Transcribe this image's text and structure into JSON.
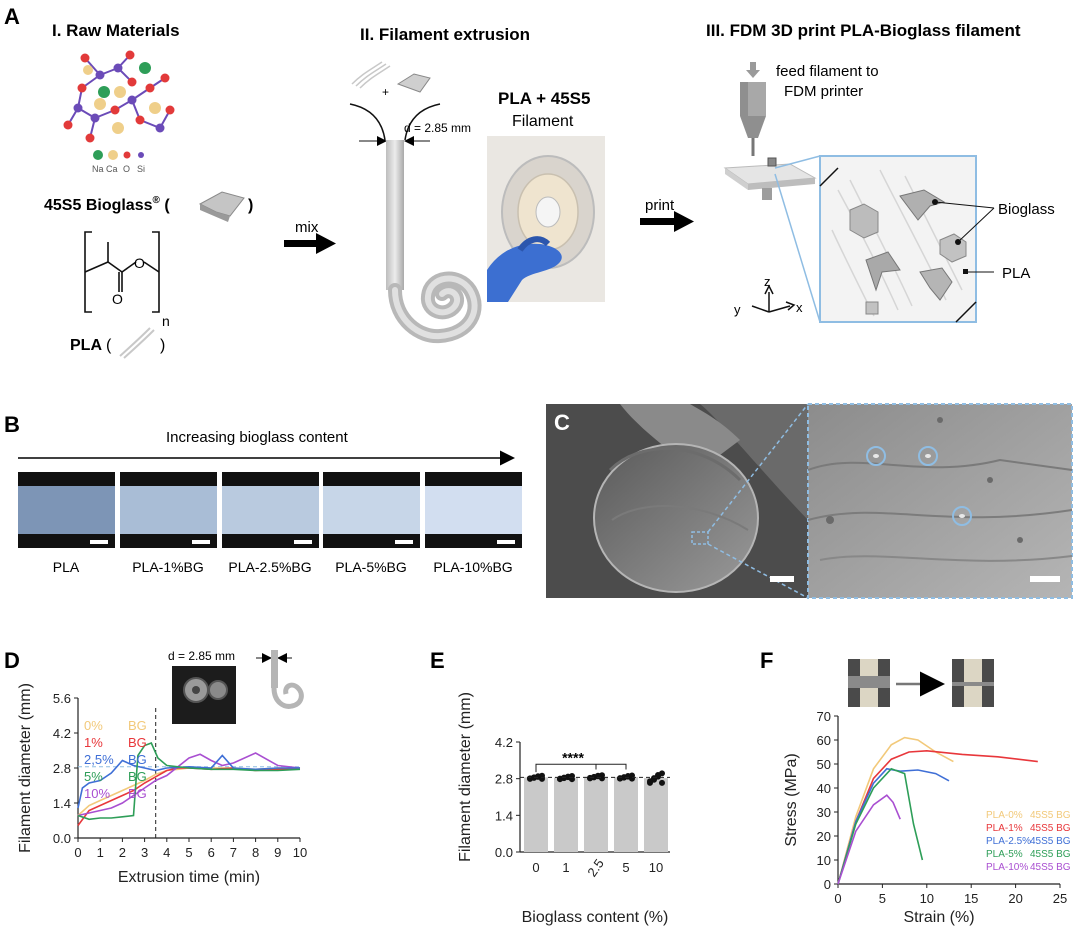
{
  "panel_a": {
    "letter": "A",
    "section1_title": "I. Raw Materials",
    "section2_title": "II. Filament extrusion",
    "section3_title": "III. FDM 3D print PLA-Bioglass filament",
    "atom_legend": [
      "Na",
      "Ca",
      "O",
      "Si"
    ],
    "bioglass_label": "45S5 Bioglass",
    "bioglass_reg": "®",
    "pla_label": "PLA",
    "subscript_n": "n",
    "mix_label": "mix",
    "plus_label": "+",
    "diameter_label": "d = 2.85 mm",
    "filament_title": "PLA + 45S5",
    "filament_sub": "Filament",
    "print_label": "print",
    "feed_label_1": "feed filament to",
    "feed_label_2": "FDM printer",
    "bioglass_callout": "Bioglass",
    "pla_callout": "PLA",
    "axes": [
      "z",
      "y",
      "x"
    ]
  },
  "panel_b": {
    "letter": "B",
    "arrow_label": "Increasing bioglass content",
    "samples": [
      "PLA",
      "PLA-1%BG",
      "PLA-2.5%BG",
      "PLA-5%BG",
      "PLA-10%BG"
    ]
  },
  "panel_c": {
    "letter": "C"
  },
  "panel_d": {
    "letter": "D",
    "inset_label": "d = 2.85 mm"
  },
  "panel_e": {
    "letter": "E",
    "sig_label": "****"
  },
  "panel_f": {
    "letter": "F"
  },
  "colors": {
    "bg0": "#f2c97a",
    "bg1": "#e8373b",
    "bg25": "#3f6fd6",
    "bg5": "#2e9e58",
    "bg10": "#a94fd1",
    "bar": "#c9c9c9",
    "sem_blue": "#8fbde3"
  },
  "chart_data": [
    {
      "type": "line",
      "panel": "D",
      "title": "",
      "xlabel": "Extrusion time (min)",
      "ylabel": "Filament diameter (mm)",
      "xlim": [
        0,
        10
      ],
      "ylim": [
        0,
        5.6
      ],
      "xticks": [
        "0",
        "1",
        "2",
        "3",
        "4",
        "5",
        "6",
        "7",
        "8",
        "9",
        "10"
      ],
      "yticks": [
        "0.0",
        "1.4",
        "2.8",
        "4.2",
        "5.6"
      ],
      "reference_y": 2.85,
      "vline_x": 3.5,
      "legend": [
        {
          "pct": "0%",
          "unit": "BG"
        },
        {
          "pct": "1%",
          "unit": "BG"
        },
        {
          "pct": "2,5%",
          "unit": "BG"
        },
        {
          "pct": "5%",
          "unit": "BG"
        },
        {
          "pct": "10%",
          "unit": "BG"
        }
      ],
      "series": [
        {
          "name": "0% BG",
          "x": [
            0,
            0.5,
            1,
            1.5,
            2,
            2.5,
            3,
            3.5,
            4,
            4.5,
            5,
            6,
            7,
            8,
            9,
            10
          ],
          "y": [
            0.9,
            1.3,
            1.5,
            1.7,
            1.9,
            2.1,
            2.3,
            2.55,
            2.7,
            2.75,
            2.8,
            2.8,
            2.8,
            2.75,
            2.8,
            2.8
          ]
        },
        {
          "name": "1% BG",
          "x": [
            0,
            0.5,
            1,
            1.5,
            2,
            2.5,
            3,
            3.5,
            4,
            4.5,
            5,
            6,
            7,
            8,
            9,
            10
          ],
          "y": [
            0.5,
            1.1,
            1.3,
            1.5,
            1.7,
            1.9,
            2.2,
            2.45,
            2.7,
            2.8,
            2.8,
            2.75,
            2.8,
            2.7,
            2.75,
            2.8
          ]
        },
        {
          "name": "2,5% BG",
          "x": [
            0,
            0.2,
            0.5,
            1,
            1.5,
            2,
            2.5,
            3,
            3.5,
            4,
            5,
            6,
            6.5,
            7,
            8,
            9,
            10
          ],
          "y": [
            1.2,
            2.0,
            2.2,
            2.3,
            2.6,
            3.1,
            2.9,
            2.8,
            2.7,
            2.8,
            2.85,
            2.8,
            3.3,
            2.8,
            2.75,
            2.8,
            2.8
          ]
        },
        {
          "name": "5% BG",
          "x": [
            0,
            0.5,
            1,
            1.5,
            2,
            2.5,
            2.7,
            3,
            3.3,
            3.6,
            4,
            5,
            6,
            7,
            8,
            9,
            10
          ],
          "y": [
            0.9,
            0.75,
            0.8,
            0.8,
            0.85,
            0.9,
            3.3,
            3.7,
            3.8,
            3.2,
            2.9,
            2.8,
            2.75,
            2.75,
            2.7,
            2.7,
            2.75
          ]
        },
        {
          "name": "10% BG",
          "x": [
            0,
            0.5,
            1,
            1.5,
            2,
            2.5,
            3,
            3.5,
            4,
            5,
            5.5,
            6,
            6.5,
            7,
            8,
            9,
            10
          ],
          "y": [
            0.9,
            1.0,
            1.1,
            1.2,
            1.4,
            1.7,
            2.0,
            2.3,
            2.5,
            3.2,
            3.35,
            3.1,
            2.9,
            3.0,
            3.4,
            2.9,
            2.8
          ]
        }
      ]
    },
    {
      "type": "bar",
      "panel": "E",
      "title": "",
      "xlabel": "Bioglass content (%)",
      "ylabel": "Filament diameter (mm)",
      "categories": [
        "0",
        "1",
        "2.5",
        "5",
        "10"
      ],
      "values": [
        2.85,
        2.84,
        2.87,
        2.86,
        2.82
      ],
      "ylim": [
        0,
        4.2
      ],
      "yticks": [
        "0.0",
        "1.4",
        "2.8",
        "4.2"
      ],
      "reference_y": 2.85,
      "significance": {
        "from": "0",
        "to": "5",
        "label": "****"
      }
    },
    {
      "type": "line",
      "panel": "F",
      "title": "",
      "xlabel": "Strain (%)",
      "ylabel": "Stress (MPa)",
      "xlim": [
        0,
        25
      ],
      "ylim": [
        0,
        70
      ],
      "xticks": [
        "0",
        "5",
        "10",
        "15",
        "20",
        "25"
      ],
      "yticks": [
        "0",
        "10",
        "20",
        "30",
        "40",
        "50",
        "60",
        "70"
      ],
      "legend": [
        {
          "pct": "PLA-0%",
          "unit": "45S5 BG"
        },
        {
          "pct": "PLA-1%",
          "unit": "45S5 BG"
        },
        {
          "pct": "PLA-2.5%",
          "unit": "45S5 BG"
        },
        {
          "pct": "PLA-5%",
          "unit": "45S5 BG"
        },
        {
          "pct": "PLA-10%",
          "unit": "45S5 BG"
        }
      ],
      "series": [
        {
          "name": "PLA-0% 45S5 BG",
          "x": [
            0,
            2,
            4,
            6,
            7.5,
            9,
            11,
            13
          ],
          "y": [
            0,
            28,
            48,
            58,
            61,
            60,
            55,
            51
          ]
        },
        {
          "name": "PLA-1% 45S5 BG",
          "x": [
            0,
            2,
            4,
            6,
            8,
            10,
            14,
            18,
            22.5
          ],
          "y": [
            0,
            26,
            44,
            52,
            55,
            55.5,
            54,
            53,
            51
          ]
        },
        {
          "name": "PLA-2.5% 45S5 BG",
          "x": [
            0,
            2,
            4,
            5.5,
            7,
            9,
            11,
            12.5
          ],
          "y": [
            0,
            26,
            42,
            48,
            47,
            47.5,
            46,
            43
          ]
        },
        {
          "name": "PLA-5% 45S5 BG",
          "x": [
            0,
            2,
            4,
            6,
            7.5,
            8.5,
            9.5
          ],
          "y": [
            0,
            25,
            40,
            48,
            46,
            25,
            10
          ]
        },
        {
          "name": "PLA-10% 45S5 BG",
          "x": [
            0,
            2,
            4,
            5.5,
            6.2,
            7
          ],
          "y": [
            0,
            22,
            33,
            37,
            34,
            27
          ]
        }
      ]
    }
  ]
}
